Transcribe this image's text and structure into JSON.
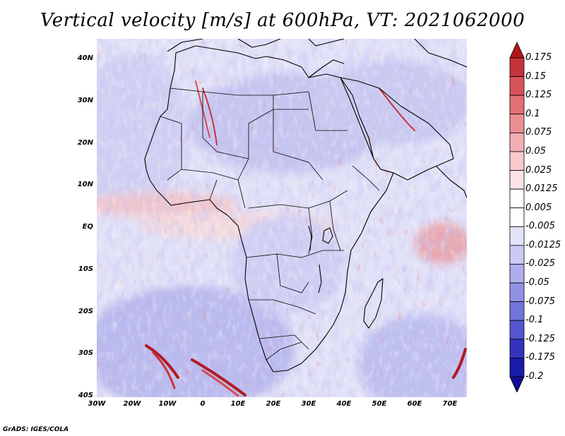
{
  "title": "Vertical velocity [m/s] at 600hPa, VT: 2021062000",
  "credit": "GrADS: IGES/COLA",
  "y_axis_labels": [
    "40N",
    "30N",
    "20N",
    "10N",
    "EQ",
    "10S",
    "20S",
    "30S",
    "40S"
  ],
  "x_axis_labels": [
    "30W",
    "20W",
    "10W",
    "0",
    "10E",
    "20E",
    "30E",
    "40E",
    "50E",
    "60E",
    "70E"
  ],
  "colorbar": {
    "labels": [
      "0.175",
      "0.15",
      "0.125",
      "0.1",
      "0.075",
      "0.05",
      "0.025",
      "0.0125",
      "0.005",
      "-0.005",
      "-0.0125",
      "-0.025",
      "-0.05",
      "-0.075",
      "-0.1",
      "-0.125",
      "-0.175",
      "-0.2"
    ],
    "colors": [
      "#b2161c",
      "#c7333a",
      "#d8525a",
      "#e36f77",
      "#ec8f96",
      "#f2aeb3",
      "#f7c9cd",
      "#fbe2e4",
      "#ffffff",
      "#ffffff",
      "#e3e3fa",
      "#cacaf4",
      "#aeaeee",
      "#9191e6",
      "#7373dc",
      "#5555cf",
      "#3333be",
      "#1a1aa8",
      "#0f0f94"
    ]
  },
  "map": {
    "region": "Africa",
    "lon_range": [
      -30,
      75
    ],
    "lat_range": [
      -40,
      45
    ],
    "fill_colors": {
      "land_base": "#c9c9f0",
      "ocean_base": "#e4e4f8",
      "positive": "#d43a3a",
      "negative": "#5555d0"
    },
    "coastline_color": "#000000"
  }
}
